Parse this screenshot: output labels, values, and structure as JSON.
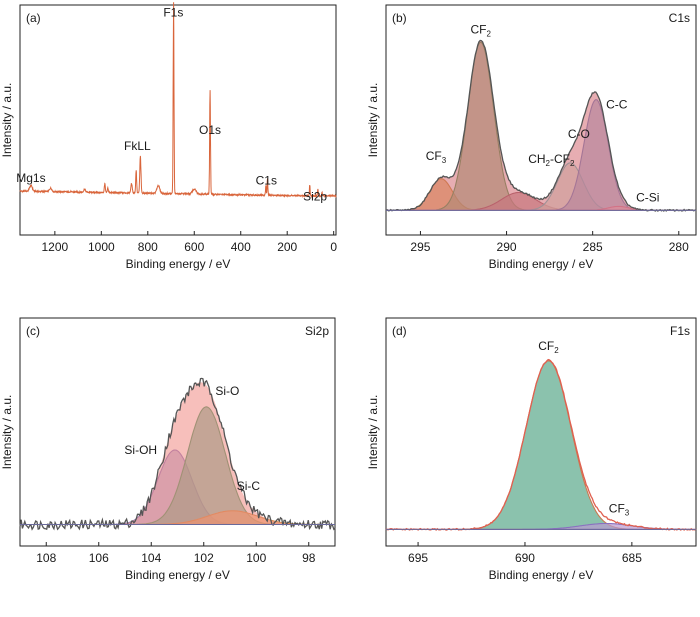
{
  "figure": {
    "ylabel": "Intensity / a.u.",
    "xlabel": "Binding energy / eV"
  },
  "chart_data": [
    {
      "id": "a",
      "type": "line",
      "tag": "(a)",
      "title": "",
      "xlabel": "Binding energy / eV",
      "ylabel": "Intensity / a.u.",
      "xlim": [
        1350,
        -10
      ],
      "ylim": [
        0,
        1.0
      ],
      "xticks": [
        1200,
        1000,
        800,
        600,
        400,
        200,
        0
      ],
      "grid": false,
      "series": [
        {
          "color": "#d9653b",
          "baseline": 0.17,
          "peaks": [
            [
              1303,
              0.025,
              6
            ],
            [
              1218,
              0.015,
              5
            ],
            [
              1072,
              0.012,
              4
            ],
            [
              985,
              0.04,
              2
            ],
            [
              972,
              0.02,
              2
            ],
            [
              870,
              0.04,
              3
            ],
            [
              850,
              0.1,
              2
            ],
            [
              832,
              0.16,
              2.5
            ],
            [
              755,
              0.035,
              6
            ],
            [
              689,
              0.83,
              1.8
            ],
            [
              600,
              0.02,
              8
            ],
            [
              532,
              0.45,
              1.8
            ],
            [
              285,
              0.07,
              1.6
            ],
            [
              292,
              0.04,
              1.6
            ],
            [
              103,
              0.05,
              1.5
            ],
            [
              68,
              0.03,
              1.5
            ],
            [
              50,
              0.015,
              1.5
            ]
          ]
        }
      ],
      "annotations": [
        {
          "text": "Mg1s",
          "x": 1303,
          "y": 0.23
        },
        {
          "text": "FkLL",
          "x": 845,
          "y": 0.37
        },
        {
          "text": "F1s",
          "x": 690,
          "y": 0.95
        },
        {
          "text": "O1s",
          "x": 532,
          "y": 0.44
        },
        {
          "text": "C1s",
          "x": 290,
          "y": 0.22
        },
        {
          "text": "Si2p",
          "x": 80,
          "y": 0.15
        }
      ]
    },
    {
      "id": "b",
      "type": "area",
      "tag": "(b)",
      "title": "C1s",
      "xlabel": "Binding energy / eV",
      "ylabel": "Intensity / a.u.",
      "xlim": [
        297,
        279
      ],
      "ylim": [
        0,
        1.0
      ],
      "xticks": [
        295,
        290,
        285,
        280
      ],
      "grid": false,
      "background": 0.055,
      "components": [
        {
          "name": "CF3",
          "label_main": "CF",
          "label_sub": "3",
          "center": 293.8,
          "amp": 0.16,
          "sigma": 0.65,
          "fill": "#e4a84c",
          "edge": "#c98a2a"
        },
        {
          "name": "CF2",
          "label_main": "CF",
          "label_sub": "2",
          "center": 291.5,
          "amp": 0.85,
          "sigma": 0.75,
          "fill": "#8fb07c",
          "edge": "#4f9a4f"
        },
        {
          "name": "CH2-CF2",
          "label_main": "CH",
          "label_sub": "2",
          "label_tail": "-CF",
          "label_sub2": "2",
          "center": 289.3,
          "amp": 0.09,
          "sigma": 1.0,
          "fill": "#b9868c",
          "edge": "#9a5a64"
        },
        {
          "name": "C-O",
          "label_main": "C-O",
          "center": 286.3,
          "amp": 0.24,
          "sigma": 0.75,
          "fill": "#cde3cf",
          "edge": "#5fc2c0"
        },
        {
          "name": "C-C",
          "label_main": "C-C",
          "center": 284.8,
          "amp": 0.56,
          "sigma": 0.7,
          "fill": "#98a9cf",
          "edge": "#6a84c0"
        },
        {
          "name": "C-Si",
          "label_main": "C-Si",
          "center": 283.5,
          "amp": 0.02,
          "sigma": 0.6,
          "fill": "#e6b4c8",
          "edge": "#d07ea0"
        }
      ],
      "envelope_fill": "#d46a72",
      "envelope_edge": "#555555",
      "labels": [
        {
          "ref": "CF3",
          "x": 294.1,
          "y": 0.31
        },
        {
          "ref": "CF2",
          "x": 291.5,
          "y": 0.95
        },
        {
          "ref": "CH2-CF2",
          "x": 287.4,
          "y": 0.295
        },
        {
          "ref": "C-O",
          "x": 285.8,
          "y": 0.42
        },
        {
          "ref": "C-C",
          "x": 283.6,
          "y": 0.57
        },
        {
          "ref": "C-Si",
          "x": 281.8,
          "y": 0.1
        }
      ]
    },
    {
      "id": "c",
      "type": "area",
      "tag": "(c)",
      "title": "Si2p",
      "xlabel": "Binding energy / eV",
      "ylabel": "Intensity / a.u.",
      "xlim": [
        109,
        97
      ],
      "ylim": [
        0,
        1.0
      ],
      "xticks": [
        108,
        106,
        104,
        102,
        100,
        98
      ],
      "grid": false,
      "background": 0.04,
      "components": [
        {
          "name": "Si-OH",
          "label_main": "Si-OH",
          "center": 103.1,
          "amp": 0.38,
          "sigma": 0.65,
          "fill": "#a89ccc",
          "edge": "#8a77c0"
        },
        {
          "name": "Si-O",
          "label_main": "Si-O",
          "center": 101.9,
          "amp": 0.6,
          "sigma": 0.72,
          "fill": "#5fae8a",
          "edge": "#3f9a64"
        },
        {
          "name": "Si-C",
          "label_main": "Si-C",
          "center": 100.9,
          "amp": 0.07,
          "sigma": 0.95,
          "fill": "#e8a05a",
          "edge": "#d08a3a"
        }
      ],
      "envelope_fill": "#f08a84",
      "envelope_edge": "#555555",
      "labels": [
        {
          "ref": "Si-OH",
          "x": 104.4,
          "y": 0.4
        },
        {
          "ref": "Si-O",
          "x": 101.1,
          "y": 0.7
        },
        {
          "ref": "Si-C",
          "x": 100.3,
          "y": 0.215
        }
      ]
    },
    {
      "id": "d",
      "type": "area",
      "tag": "(d)",
      "title": "F1s",
      "xlabel": "Binding energy / eV",
      "ylabel": "Intensity / a.u.",
      "xlim": [
        696.5,
        682
      ],
      "ylim": [
        0,
        1.0
      ],
      "xticks": [
        695,
        690,
        685
      ],
      "grid": false,
      "background": 0.015,
      "components": [
        {
          "name": "CF2",
          "label_main": "CF",
          "label_sub": "2",
          "center": 688.9,
          "amp": 0.86,
          "sigma": 1.05,
          "fill": "#5aa88a",
          "edge": "#c97a50"
        },
        {
          "name": "CF3",
          "label_main": "CF",
          "label_sub": "3",
          "center": 686.2,
          "amp": 0.03,
          "sigma": 1.2,
          "fill": "#b99ad0",
          "edge": "#8a70c0"
        }
      ],
      "envelope_fill": "none",
      "envelope_edge": "#e06050",
      "labels": [
        {
          "ref": "CF2",
          "x": 688.9,
          "y": 0.93
        },
        {
          "ref": "CF3",
          "x": 685.6,
          "y": 0.1
        }
      ]
    }
  ]
}
